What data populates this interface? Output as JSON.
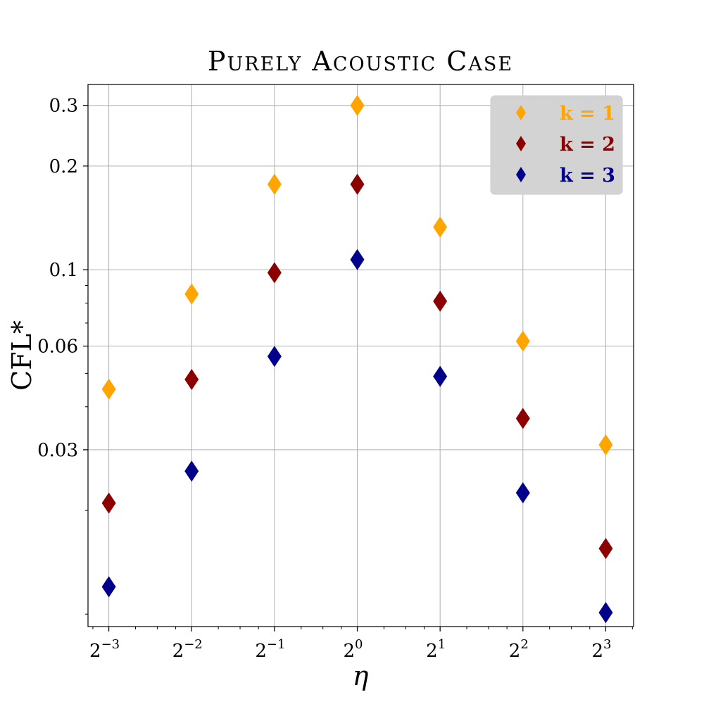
{
  "chart_data": {
    "type": "scatter",
    "title": "Purely Acoustic Case",
    "xlabel": "η",
    "ylabel": "CFL*",
    "xscale": "log2",
    "yscale": "log",
    "x": [
      0.125,
      0.25,
      0.5,
      1,
      2,
      4,
      8
    ],
    "x_tick_labels": [
      {
        "base": "2",
        "exp": "−3"
      },
      {
        "base": "2",
        "exp": "−2"
      },
      {
        "base": "2",
        "exp": "−1"
      },
      {
        "base": "2",
        "exp": "0"
      },
      {
        "base": "2",
        "exp": "1"
      },
      {
        "base": "2",
        "exp": "2"
      },
      {
        "base": "2",
        "exp": "3"
      }
    ],
    "y_ticks": [
      0.03,
      0.06,
      0.1,
      0.2,
      0.3
    ],
    "y_tick_labels": [
      "0.03",
      "0.06",
      "0.1",
      "0.2",
      "0.3"
    ],
    "xlim": [
      0.105,
      10.1
    ],
    "ylim": [
      0.0092,
      0.345
    ],
    "grid": true,
    "legend_position": "top-right",
    "series": [
      {
        "name": "k = 1",
        "color": "#FFA500",
        "marker": "diamond",
        "values": [
          0.045,
          0.085,
          0.177,
          0.3,
          0.133,
          0.062,
          0.031
        ]
      },
      {
        "name": "k = 2",
        "color": "#8B0000",
        "marker": "diamond",
        "values": [
          0.021,
          0.048,
          0.098,
          0.177,
          0.081,
          0.037,
          0.0155
        ]
      },
      {
        "name": "k = 3",
        "color": "#00008B",
        "marker": "diamond",
        "values": [
          0.012,
          0.026,
          0.056,
          0.107,
          0.049,
          0.0225,
          0.0101
        ]
      }
    ]
  }
}
